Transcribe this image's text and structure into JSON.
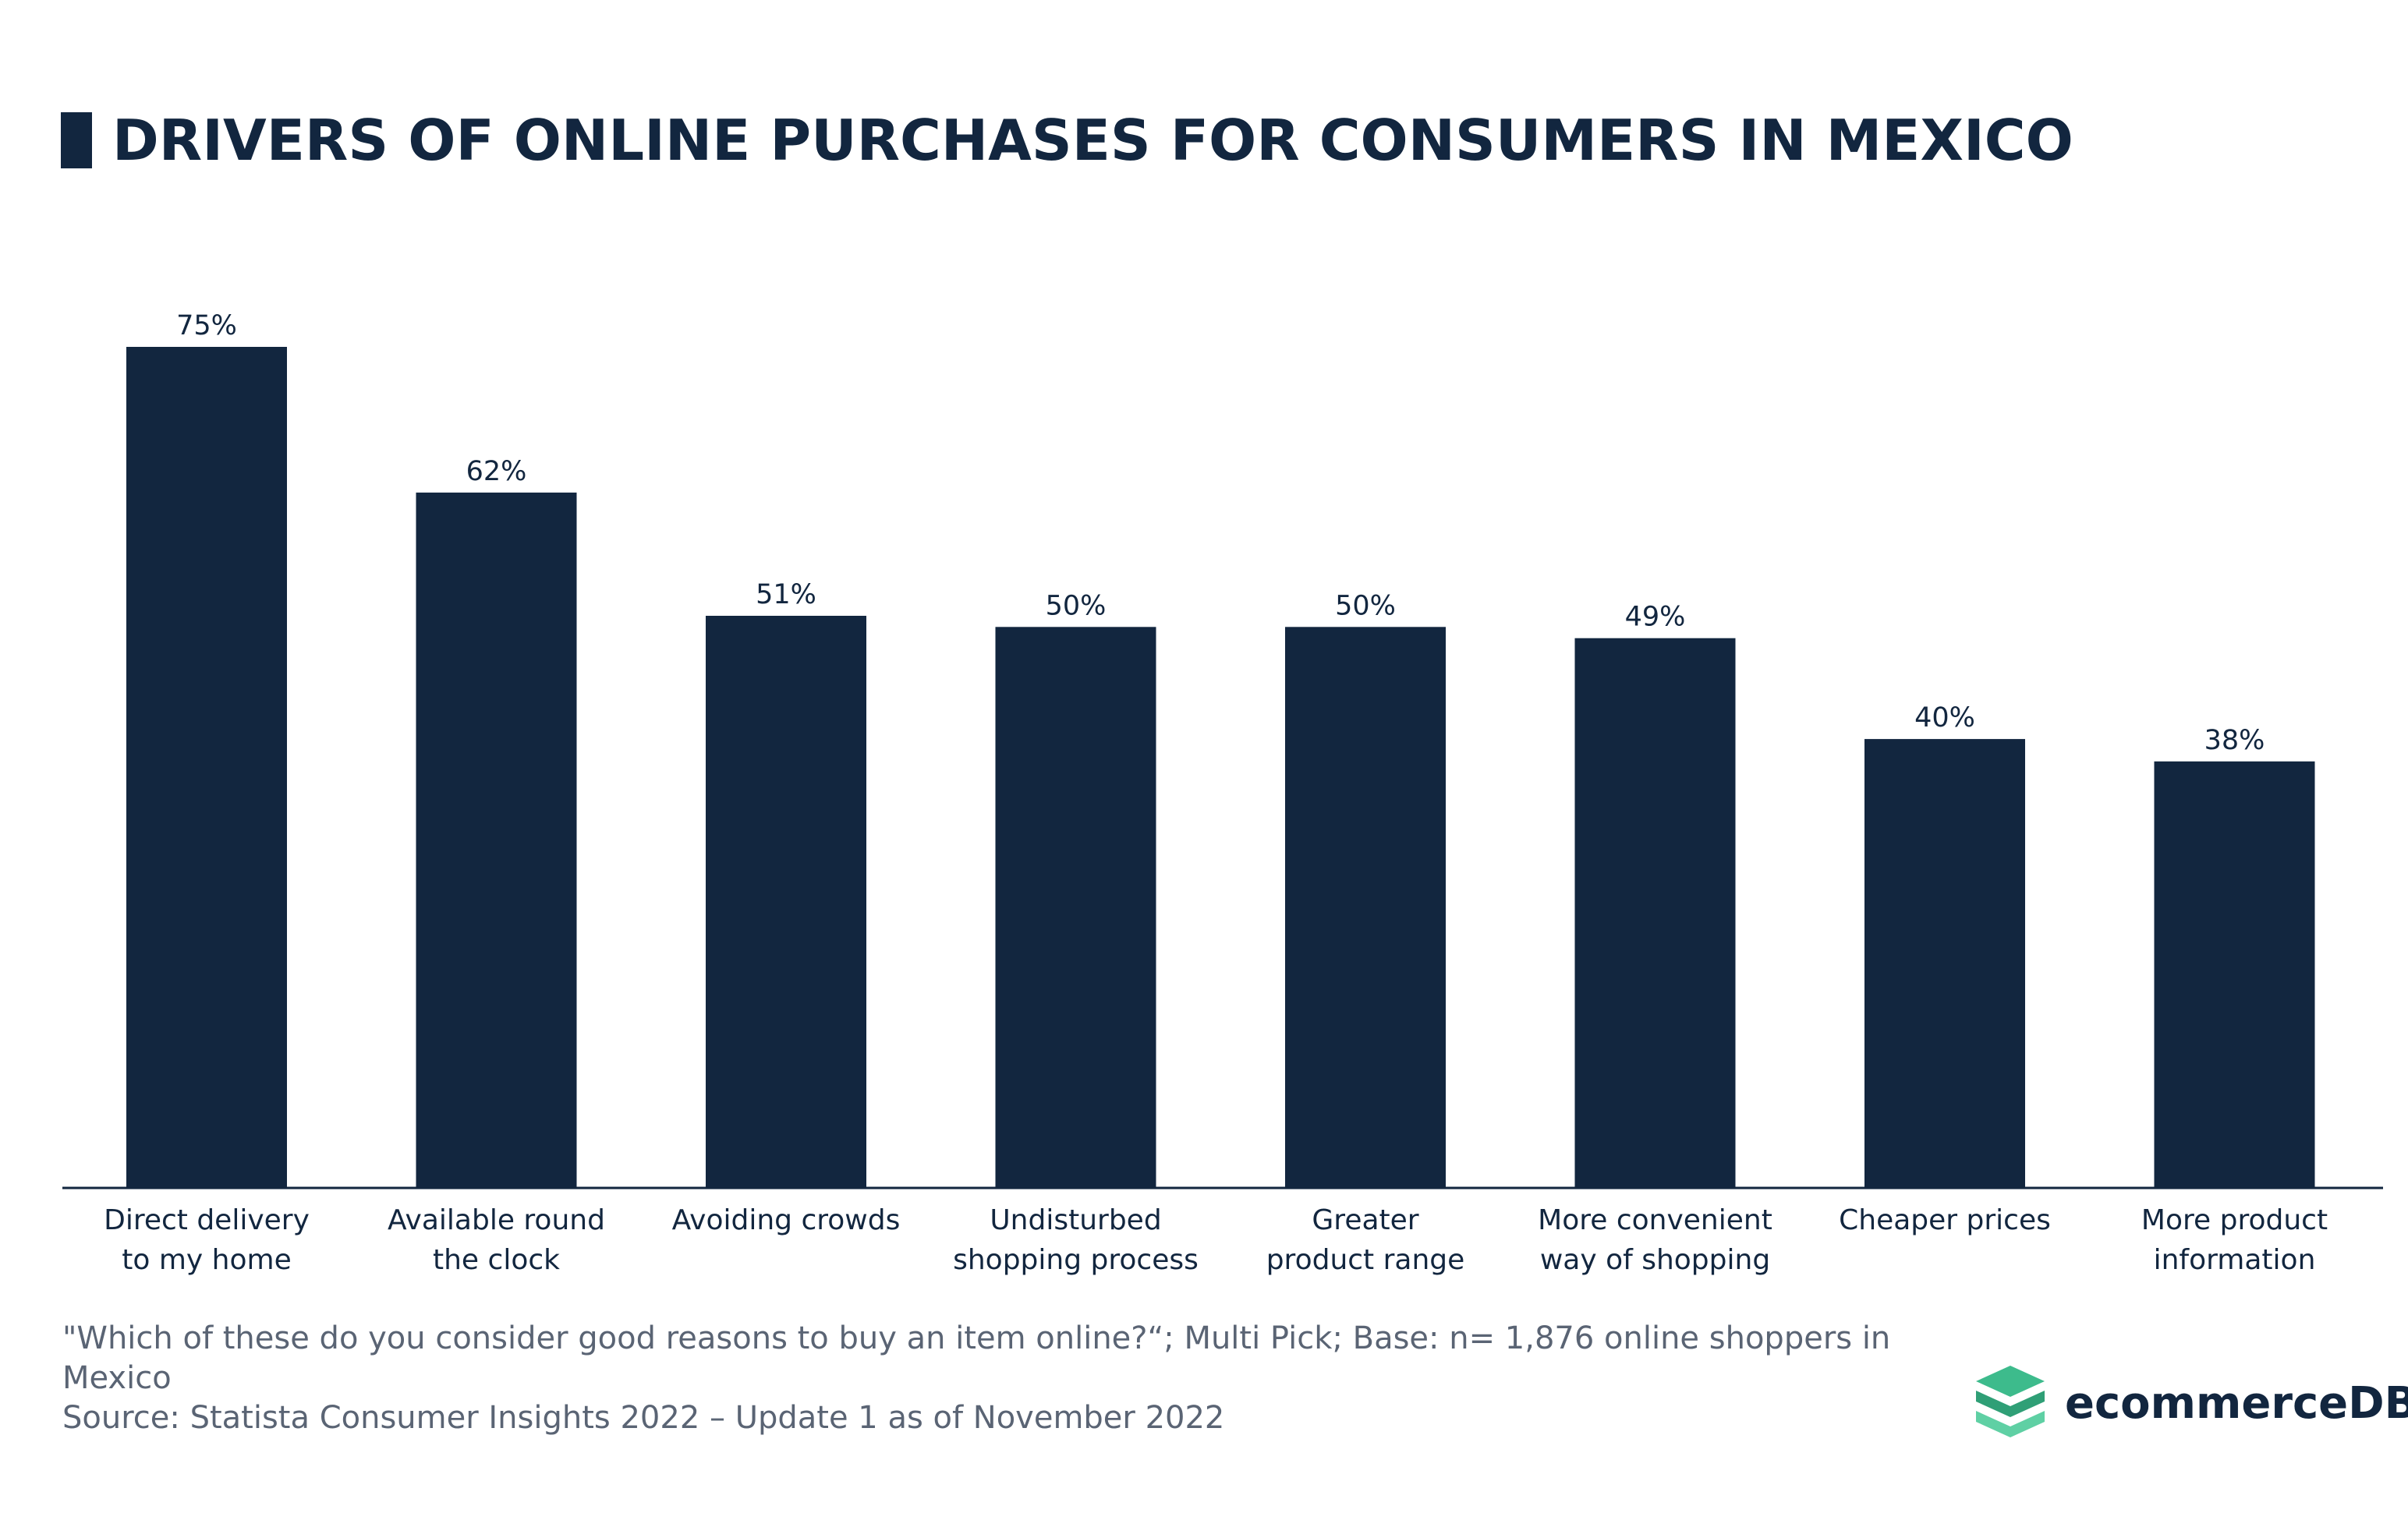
{
  "title": "DRIVERS OF ONLINE PURCHASES FOR CONSUMERS IN MEXICO",
  "colors": {
    "bar": "#12263f",
    "text": "#12263f",
    "footnote": "#5a6474",
    "logo_accent": "#3dbb8c"
  },
  "chart_data": {
    "type": "bar",
    "title": "DRIVERS OF ONLINE PURCHASES FOR CONSUMERS IN MEXICO",
    "categories": [
      [
        "Direct delivery",
        "to my home"
      ],
      [
        "Available round",
        "the clock"
      ],
      [
        "Avoiding crowds"
      ],
      [
        "Undisturbed",
        "shopping process"
      ],
      [
        "Greater",
        "product range"
      ],
      [
        "More convenient",
        "way of shopping"
      ],
      [
        "Cheaper prices"
      ],
      [
        "More product",
        "information"
      ]
    ],
    "values": [
      75,
      62,
      51,
      50,
      50,
      49,
      40,
      38
    ],
    "value_labels": [
      "75%",
      "62%",
      "51%",
      "50%",
      "50%",
      "49%",
      "40%",
      "38%"
    ],
    "unit": "%",
    "ylim": [
      0,
      75
    ],
    "grid": false,
    "legend": "none"
  },
  "footnote": {
    "question": "\"Which of these do you consider good reasons to buy an item online?“; Multi Pick; Base: n= 1,876 online shoppers in Mexico",
    "source": "Source: Statista Consumer Insights 2022 – Update 1 as of November 2022"
  },
  "logo": {
    "text": "ecommerceDB",
    "icon": "stacked-layers-icon"
  }
}
